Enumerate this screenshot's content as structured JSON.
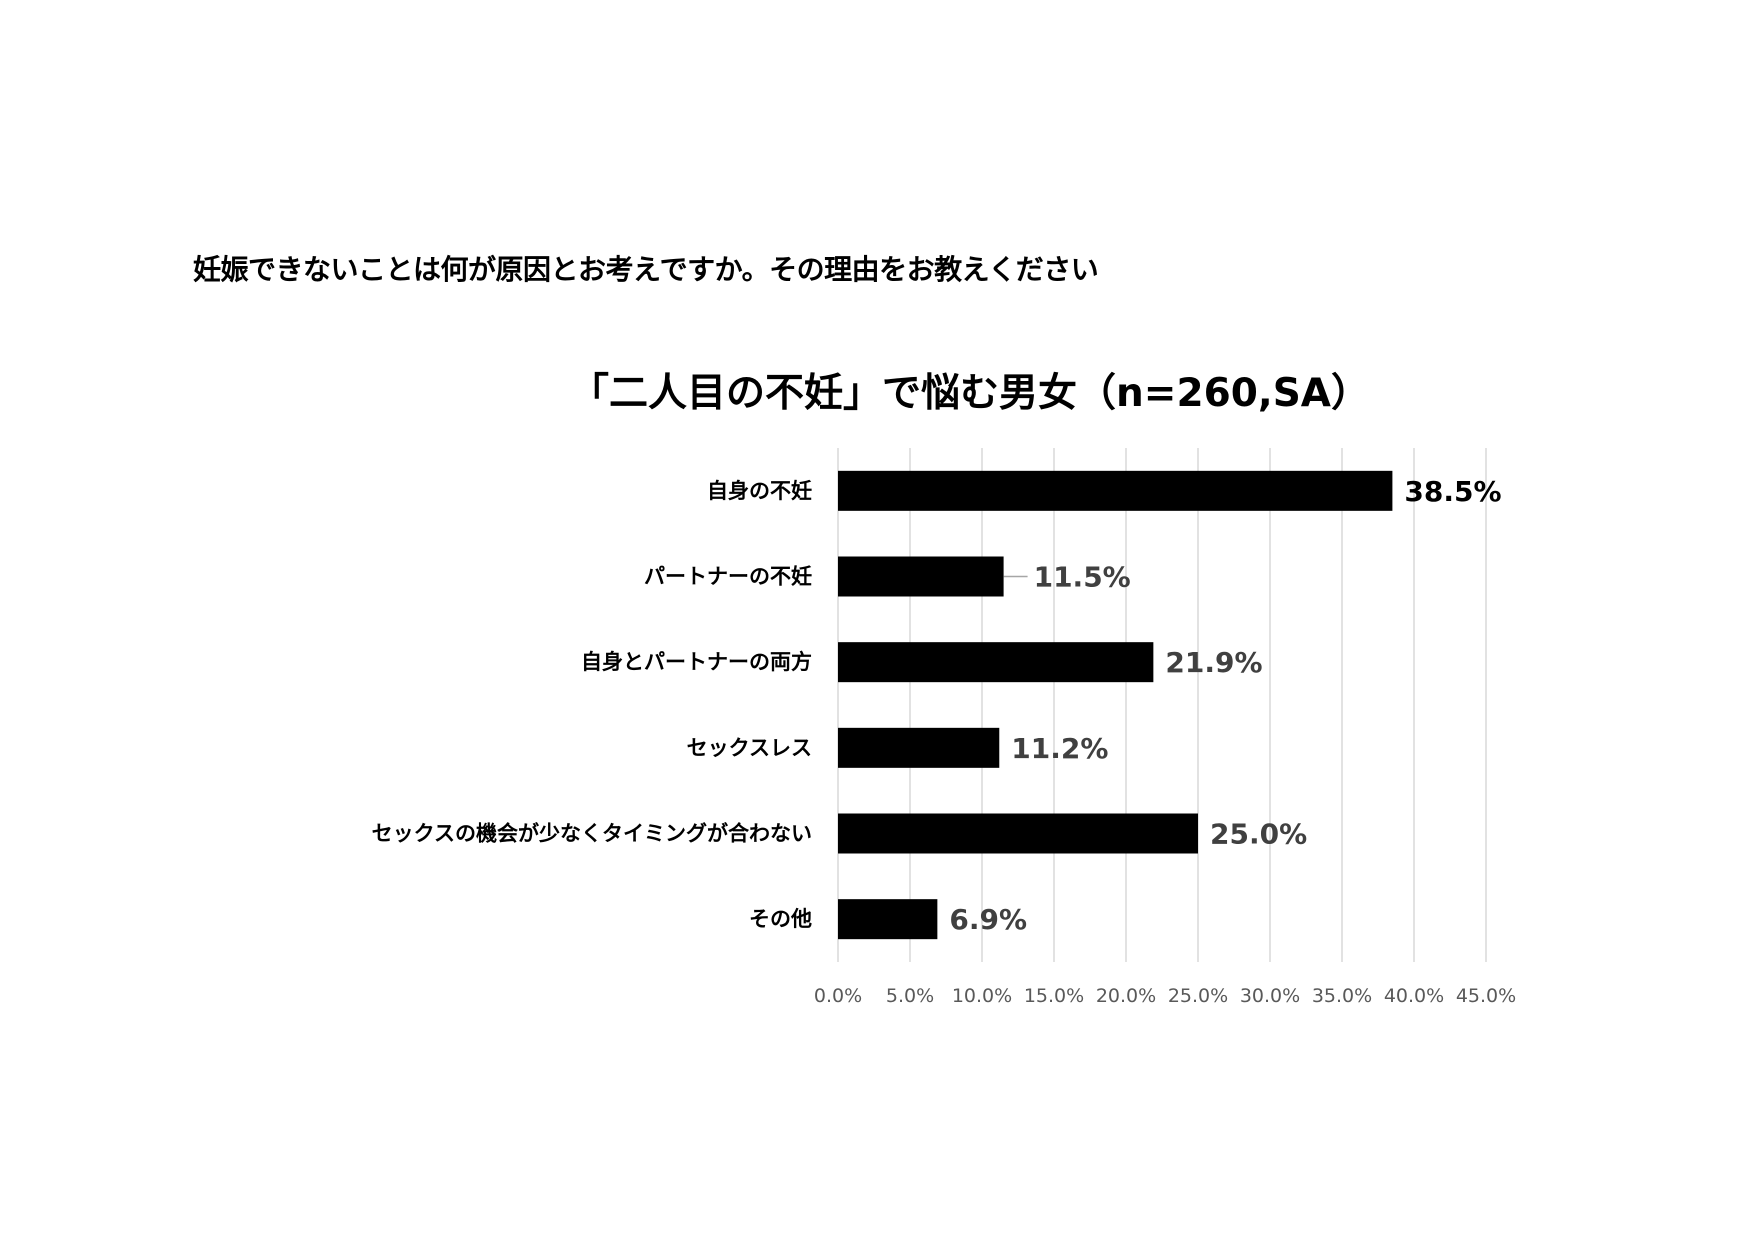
{
  "question": "妊娠できないことは何が原因とお考えですか。その理由をお教えください",
  "chart_data": {
    "type": "bar",
    "orientation": "horizontal",
    "title": "「二人目の不妊」で悩む男女（n=260,SA）",
    "categories": [
      "自身の不妊",
      "パートナーの不妊",
      "自身とパートナーの両方",
      "セックスレス",
      "セックスの機会が少なくタイミングが合わない",
      "その他"
    ],
    "values": [
      38.5,
      11.5,
      21.9,
      11.2,
      25.0,
      6.9
    ],
    "data_labels": [
      "38.5%",
      "11.5%",
      "21.9%",
      "11.2%",
      "25.0%",
      "6.9%"
    ],
    "xlim": [
      0,
      45
    ],
    "xticks": [
      0,
      5,
      10,
      15,
      20,
      25,
      30,
      35,
      40,
      45
    ],
    "xtick_labels": [
      "0.0%",
      "5.0%",
      "10.0%",
      "15.0%",
      "20.0%",
      "25.0%",
      "30.0%",
      "35.0%",
      "40.0%",
      "45.0%"
    ],
    "grid": "vertical",
    "legend": "none",
    "bar_color": "#000000",
    "label_colors": [
      "#000000",
      "#404040",
      "#404040",
      "#404040",
      "#404040",
      "#404040"
    ]
  }
}
